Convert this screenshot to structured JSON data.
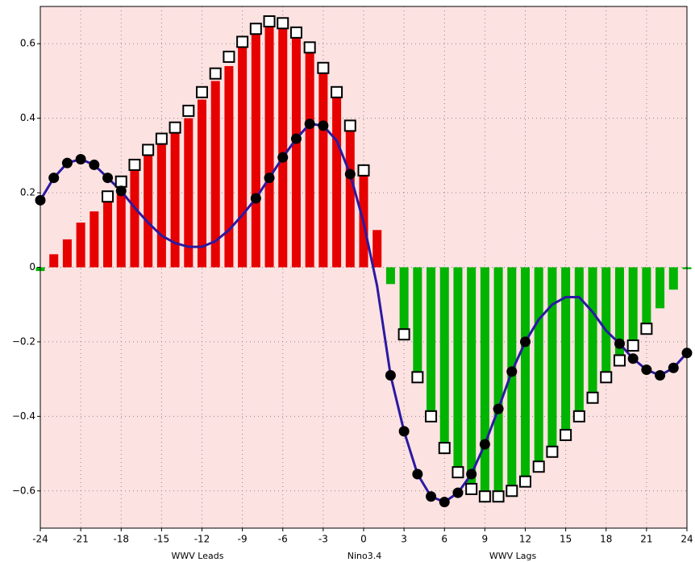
{
  "chart_data": {
    "type": "bar-line",
    "annotations": [
      "WWV Leads",
      "Nino3.4",
      "WWV Lags"
    ],
    "x": [
      -24,
      -23,
      -22,
      -21,
      -20,
      -19,
      -18,
      -17,
      -16,
      -15,
      -14,
      -13,
      -12,
      -11,
      -10,
      -9,
      -8,
      -7,
      -6,
      -5,
      -4,
      -3,
      -2,
      -1,
      0,
      1,
      2,
      3,
      4,
      5,
      6,
      7,
      8,
      9,
      10,
      11,
      12,
      13,
      14,
      15,
      16,
      17,
      18,
      19,
      20,
      21,
      22,
      23,
      24
    ],
    "bars": {
      "positive_color": "#e60000",
      "negative_color": "#00b400",
      "values": [
        -0.01,
        0.035,
        0.075,
        0.12,
        0.15,
        0.19,
        0.22,
        0.26,
        0.3,
        0.33,
        0.36,
        0.4,
        0.45,
        0.5,
        0.54,
        0.59,
        0.63,
        0.655,
        0.65,
        0.62,
        0.58,
        0.52,
        0.46,
        0.37,
        0.25,
        0.1,
        -0.045,
        -0.17,
        -0.28,
        -0.39,
        -0.48,
        -0.55,
        -0.59,
        -0.61,
        -0.61,
        -0.6,
        -0.57,
        -0.53,
        -0.49,
        -0.44,
        -0.39,
        -0.34,
        -0.29,
        -0.24,
        -0.2,
        -0.16,
        -0.11,
        -0.06,
        -0.005
      ]
    },
    "squares": {
      "color": "#000000",
      "values": [
        null,
        null,
        null,
        null,
        null,
        0.19,
        0.23,
        0.275,
        0.315,
        0.345,
        0.375,
        0.42,
        0.47,
        0.52,
        0.565,
        0.605,
        0.64,
        0.66,
        0.655,
        0.63,
        0.59,
        0.535,
        0.47,
        0.38,
        0.26,
        null,
        null,
        -0.18,
        -0.295,
        -0.4,
        -0.485,
        -0.55,
        -0.595,
        -0.615,
        -0.615,
        -0.6,
        -0.575,
        -0.535,
        -0.495,
        -0.45,
        -0.4,
        -0.35,
        -0.295,
        -0.25,
        -0.21,
        -0.165,
        null,
        null,
        null
      ]
    },
    "curve": {
      "color": "#2a1aa0",
      "values": [
        0.18,
        0.24,
        0.28,
        0.29,
        0.275,
        0.24,
        0.205,
        0.16,
        0.12,
        0.085,
        0.065,
        0.055,
        0.055,
        0.07,
        0.1,
        0.14,
        0.185,
        0.24,
        0.295,
        0.345,
        0.385,
        0.38,
        0.34,
        0.25,
        0.12,
        -0.05,
        -0.29,
        -0.44,
        -0.555,
        -0.615,
        -0.63,
        -0.605,
        -0.555,
        -0.475,
        -0.38,
        -0.28,
        -0.2,
        -0.14,
        -0.1,
        -0.08,
        -0.08,
        -0.12,
        -0.17,
        -0.205,
        -0.245,
        -0.275,
        -0.29,
        -0.27,
        -0.23
      ]
    },
    "dots": {
      "color": "#000000",
      "values": [
        0.18,
        0.24,
        0.28,
        0.29,
        0.275,
        0.24,
        0.205,
        null,
        null,
        null,
        null,
        null,
        null,
        null,
        null,
        null,
        0.185,
        0.24,
        0.295,
        0.345,
        0.385,
        0.38,
        null,
        0.25,
        null,
        null,
        -0.29,
        -0.44,
        -0.555,
        -0.615,
        -0.63,
        -0.605,
        -0.555,
        -0.475,
        -0.38,
        -0.28,
        -0.2,
        null,
        null,
        null,
        null,
        null,
        null,
        -0.205,
        -0.245,
        -0.275,
        -0.29,
        -0.27,
        -0.23
      ]
    },
    "xlim": [
      -24,
      24
    ],
    "xticks": [
      -24,
      -21,
      -18,
      -15,
      -12,
      -9,
      -6,
      -3,
      0,
      3,
      6,
      9,
      12,
      15,
      18,
      21,
      24
    ],
    "ylim": [
      -0.7,
      0.7
    ],
    "yticks": [
      {
        "value": -0.6,
        "label": "−0.6"
      },
      {
        "value": -0.4,
        "label": "−0.4"
      },
      {
        "value": -0.2,
        "label": "−0.2"
      },
      0,
      0.2,
      0.4,
      0.6
    ],
    "grid": true,
    "background": "#fde2e2",
    "zero_line_color": "#d000d0"
  }
}
